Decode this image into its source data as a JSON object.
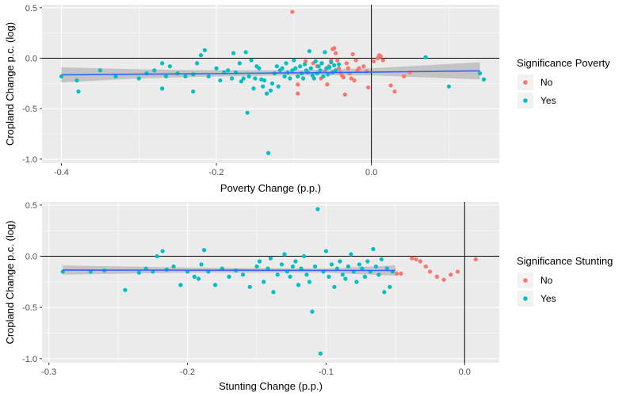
{
  "colors": {
    "no": "#F8766D",
    "yes": "#00BFC4",
    "fit_line": "#3366FF",
    "band": "#BDBDBD",
    "panel_bg": "#EBEBEB",
    "grid": "#FFFFFF",
    "ref_line": "#000000"
  },
  "chart_data": [
    {
      "type": "scatter",
      "title": "",
      "xlabel": "Poverty Change (p.p.)",
      "ylabel": "Cropland Change p.c. (log)",
      "xlim": [
        -0.425,
        0.165
      ],
      "ylim": [
        -1.04,
        0.53
      ],
      "x_ticks": [
        -0.4,
        -0.2,
        0.0
      ],
      "x_tick_labels": [
        "-0.4",
        "-0.2",
        "0.0"
      ],
      "y_ticks": [
        0.5,
        0.0,
        -0.5,
        -1.0
      ],
      "y_tick_labels": [
        "0.5",
        "0.0",
        "-0.5",
        "-1.0"
      ],
      "grid": true,
      "legend": {
        "title": "Significance Poverty",
        "placement": "right",
        "entries": [
          {
            "label": "No",
            "color": "#F8766D"
          },
          {
            "label": "Yes",
            "color": "#00BFC4"
          }
        ]
      },
      "reference_lines": {
        "x": 0.0,
        "y": 0.0
      },
      "fit": {
        "x": [
          -0.4,
          -0.3,
          -0.2,
          -0.1,
          0.0,
          0.14
        ],
        "y": [
          -0.165,
          -0.158,
          -0.152,
          -0.145,
          -0.138,
          -0.125
        ],
        "lower": [
          -0.24,
          -0.2,
          -0.18,
          -0.17,
          -0.17,
          -0.21
        ],
        "upper": [
          -0.09,
          -0.11,
          -0.12,
          -0.12,
          -0.1,
          -0.04
        ]
      },
      "series": [
        {
          "name": "No",
          "color": "#F8766D",
          "points": [
            [
              -0.102,
              0.46
            ],
            [
              -0.095,
              -0.26
            ],
            [
              -0.095,
              -0.35
            ],
            [
              -0.085,
              -0.03
            ],
            [
              -0.075,
              -0.05
            ],
            [
              -0.07,
              -0.08
            ],
            [
              -0.065,
              -0.2
            ],
            [
              -0.06,
              -0.13
            ],
            [
              -0.057,
              -0.26
            ],
            [
              -0.055,
              -0.08
            ],
            [
              -0.052,
              -0.02
            ],
            [
              -0.05,
              0.09
            ],
            [
              -0.048,
              0.1
            ],
            [
              -0.046,
              0.05
            ],
            [
              -0.044,
              -0.02
            ],
            [
              -0.042,
              -0.1
            ],
            [
              -0.04,
              -0.14
            ],
            [
              -0.038,
              -0.17
            ],
            [
              -0.036,
              -0.19
            ],
            [
              -0.034,
              -0.36
            ],
            [
              -0.032,
              -0.05
            ],
            [
              -0.03,
              -0.1
            ],
            [
              -0.028,
              -0.15
            ],
            [
              -0.026,
              -0.2
            ],
            [
              -0.024,
              0.04
            ],
            [
              -0.022,
              -0.22
            ],
            [
              -0.02,
              -0.02
            ],
            [
              -0.018,
              -0.12
            ],
            [
              -0.016,
              -0.1
            ],
            [
              -0.01,
              -0.08
            ],
            [
              -0.006,
              -0.13
            ],
            [
              -0.004,
              -0.29
            ],
            [
              0.003,
              -0.03
            ],
            [
              0.008,
              0.0
            ],
            [
              0.01,
              0.03
            ],
            [
              0.012,
              0.02
            ],
            [
              0.015,
              -0.02
            ],
            [
              0.025,
              -0.27
            ],
            [
              0.03,
              -0.33
            ],
            [
              0.042,
              -0.18
            ],
            [
              0.05,
              -0.14
            ]
          ]
        },
        {
          "name": "Yes",
          "color": "#00BFC4",
          "points": [
            [
              -0.4,
              -0.18
            ],
            [
              -0.38,
              -0.22
            ],
            [
              -0.378,
              -0.33
            ],
            [
              -0.35,
              -0.12
            ],
            [
              -0.33,
              -0.18
            ],
            [
              -0.3,
              -0.2
            ],
            [
              -0.29,
              -0.15
            ],
            [
              -0.28,
              -0.12
            ],
            [
              -0.27,
              -0.3
            ],
            [
              -0.27,
              -0.05
            ],
            [
              -0.265,
              -0.18
            ],
            [
              -0.26,
              -0.08
            ],
            [
              -0.25,
              -0.15
            ],
            [
              -0.24,
              -0.18
            ],
            [
              -0.23,
              -0.16
            ],
            [
              -0.23,
              -0.33
            ],
            [
              -0.225,
              -0.05
            ],
            [
              -0.22,
              0.03
            ],
            [
              -0.215,
              0.08
            ],
            [
              -0.21,
              -0.18
            ],
            [
              -0.2,
              -0.1
            ],
            [
              -0.195,
              -0.22
            ],
            [
              -0.19,
              -0.14
            ],
            [
              -0.185,
              -0.12
            ],
            [
              -0.18,
              -0.2
            ],
            [
              -0.178,
              0.05
            ],
            [
              -0.175,
              -0.14
            ],
            [
              -0.17,
              -0.05
            ],
            [
              -0.168,
              -0.23
            ],
            [
              -0.165,
              -0.2
            ],
            [
              -0.162,
              0.06
            ],
            [
              -0.16,
              -0.54
            ],
            [
              -0.158,
              -0.18
            ],
            [
              -0.155,
              -0.02
            ],
            [
              -0.152,
              -0.3
            ],
            [
              -0.15,
              -0.2
            ],
            [
              -0.148,
              -0.08
            ],
            [
              -0.145,
              -0.1
            ],
            [
              -0.142,
              -0.21
            ],
            [
              -0.14,
              -0.28
            ],
            [
              -0.138,
              -0.22
            ],
            [
              -0.135,
              -0.35
            ],
            [
              -0.133,
              -0.94
            ],
            [
              -0.13,
              -0.32
            ],
            [
              -0.128,
              -0.25
            ],
            [
              -0.125,
              -0.15
            ],
            [
              -0.122,
              -0.08
            ],
            [
              -0.12,
              -0.28
            ],
            [
              -0.118,
              -0.12
            ],
            [
              -0.115,
              -0.1
            ],
            [
              -0.112,
              -0.18
            ],
            [
              -0.11,
              -0.05
            ],
            [
              -0.108,
              -0.14
            ],
            [
              -0.105,
              -0.2
            ],
            [
              -0.102,
              -0.12
            ],
            [
              -0.1,
              -0.02
            ],
            [
              -0.098,
              -0.1
            ],
            [
              -0.095,
              -0.18
            ],
            [
              -0.092,
              -0.08
            ],
            [
              -0.09,
              -0.15
            ],
            [
              -0.088,
              -0.2
            ],
            [
              -0.086,
              -0.06
            ],
            [
              -0.084,
              -0.12
            ],
            [
              -0.082,
              -0.14
            ],
            [
              -0.08,
              0.07
            ],
            [
              -0.078,
              -0.1
            ],
            [
              -0.076,
              -0.17
            ],
            [
              -0.074,
              -0.2
            ],
            [
              -0.072,
              -0.03
            ],
            [
              -0.07,
              -0.15
            ],
            [
              -0.068,
              -0.08
            ],
            [
              -0.066,
              -0.12
            ],
            [
              -0.064,
              -0.05
            ],
            [
              -0.062,
              -0.18
            ],
            [
              -0.06,
              0.06
            ],
            [
              -0.058,
              -0.1
            ],
            [
              -0.056,
              -0.16
            ],
            [
              -0.054,
              -0.09
            ],
            [
              -0.052,
              -0.04
            ],
            [
              -0.05,
              -0.14
            ],
            [
              -0.048,
              -0.07
            ],
            [
              -0.046,
              -0.12
            ],
            [
              -0.042,
              -0.06
            ],
            [
              0.07,
              0.01
            ],
            [
              0.1,
              -0.28
            ],
            [
              0.14,
              -0.15
            ],
            [
              0.145,
              -0.21
            ]
          ]
        }
      ]
    },
    {
      "type": "scatter",
      "title": "",
      "xlabel": "Stunting Change (p.p.)",
      "ylabel": "Cropland Change p.c. (log)",
      "xlim": [
        -0.305,
        0.025
      ],
      "ylim": [
        -1.04,
        0.53
      ],
      "x_ticks": [
        -0.3,
        -0.2,
        -0.1,
        0.0
      ],
      "x_tick_labels": [
        "-0.3",
        "-0.2",
        "-0.1",
        "0.0"
      ],
      "y_ticks": [
        0.5,
        0.0,
        -0.5,
        -1.0
      ],
      "y_tick_labels": [
        "0.5",
        "0.0",
        "-0.5",
        "-1.0"
      ],
      "grid": true,
      "legend": {
        "title": "Significance Stunting",
        "placement": "right",
        "entries": [
          {
            "label": "No",
            "color": "#F8766D"
          },
          {
            "label": "Yes",
            "color": "#00BFC4"
          }
        ]
      },
      "reference_lines": {
        "x": 0.0,
        "y": 0.0
      },
      "fit": {
        "x": [
          -0.29,
          -0.2,
          -0.1,
          -0.05
        ],
        "y": [
          -0.135,
          -0.136,
          -0.138,
          -0.139
        ],
        "lower": [
          -0.18,
          -0.16,
          -0.16,
          -0.19
        ],
        "upper": [
          -0.09,
          -0.11,
          -0.12,
          -0.09
        ]
      },
      "series": [
        {
          "name": "No",
          "color": "#F8766D",
          "points": [
            [
              -0.049,
              -0.17
            ],
            [
              -0.046,
              -0.17
            ],
            [
              -0.038,
              -0.02
            ],
            [
              -0.035,
              -0.03
            ],
            [
              -0.032,
              -0.05
            ],
            [
              -0.028,
              -0.1
            ],
            [
              -0.025,
              -0.15
            ],
            [
              -0.02,
              -0.2
            ],
            [
              -0.015,
              -0.23
            ],
            [
              -0.01,
              -0.18
            ],
            [
              -0.005,
              -0.15
            ],
            [
              0.008,
              -0.03
            ]
          ]
        },
        {
          "name": "Yes",
          "color": "#00BFC4",
          "points": [
            [
              -0.29,
              -0.15
            ],
            [
              -0.27,
              -0.15
            ],
            [
              -0.26,
              -0.14
            ],
            [
              -0.245,
              -0.33
            ],
            [
              -0.235,
              -0.16
            ],
            [
              -0.23,
              -0.12
            ],
            [
              -0.225,
              -0.15
            ],
            [
              -0.222,
              0.0
            ],
            [
              -0.218,
              0.05
            ],
            [
              -0.215,
              -0.13
            ],
            [
              -0.21,
              -0.1
            ],
            [
              -0.205,
              -0.28
            ],
            [
              -0.2,
              -0.15
            ],
            [
              -0.195,
              -0.2
            ],
            [
              -0.192,
              -0.22
            ],
            [
              -0.19,
              -0.08
            ],
            [
              -0.188,
              0.06
            ],
            [
              -0.185,
              -0.15
            ],
            [
              -0.18,
              -0.28
            ],
            [
              -0.175,
              -0.12
            ],
            [
              -0.17,
              -0.2
            ],
            [
              -0.165,
              -0.14
            ],
            [
              -0.16,
              -0.18
            ],
            [
              -0.155,
              -0.3
            ],
            [
              -0.15,
              -0.1
            ],
            [
              -0.148,
              -0.05
            ],
            [
              -0.145,
              -0.25
            ],
            [
              -0.142,
              -0.12
            ],
            [
              -0.14,
              -0.02
            ],
            [
              -0.138,
              -0.35
            ],
            [
              -0.135,
              -0.18
            ],
            [
              -0.132,
              -0.08
            ],
            [
              -0.13,
              0.02
            ],
            [
              -0.128,
              -0.15
            ],
            [
              -0.126,
              -0.2
            ],
            [
              -0.124,
              -0.1
            ],
            [
              -0.122,
              -0.05
            ],
            [
              -0.12,
              -0.28
            ],
            [
              -0.118,
              -0.12
            ],
            [
              -0.116,
              0.0
            ],
            [
              -0.114,
              -0.18
            ],
            [
              -0.112,
              -0.25
            ],
            [
              -0.11,
              -0.54
            ],
            [
              -0.108,
              -0.1
            ],
            [
              -0.106,
              0.46
            ],
            [
              -0.104,
              -0.95
            ],
            [
              -0.102,
              -0.15
            ],
            [
              -0.1,
              0.05
            ],
            [
              -0.098,
              -0.2
            ],
            [
              -0.096,
              -0.08
            ],
            [
              -0.094,
              -0.3
            ],
            [
              -0.092,
              -0.12
            ],
            [
              -0.09,
              -0.05
            ],
            [
              -0.088,
              -0.18
            ],
            [
              -0.086,
              -0.22
            ],
            [
              -0.084,
              -0.1
            ],
            [
              -0.082,
              0.02
            ],
            [
              -0.08,
              -0.15
            ],
            [
              -0.078,
              -0.25
            ],
            [
              -0.076,
              -0.08
            ],
            [
              -0.074,
              -0.12
            ],
            [
              -0.072,
              -0.2
            ],
            [
              -0.07,
              -0.05
            ],
            [
              -0.068,
              -0.15
            ],
            [
              -0.066,
              0.07
            ],
            [
              -0.064,
              -0.1
            ],
            [
              -0.062,
              -0.18
            ],
            [
              -0.06,
              -0.03
            ],
            [
              -0.058,
              -0.35
            ],
            [
              -0.056,
              -0.12
            ],
            [
              -0.054,
              -0.3
            ],
            [
              -0.052,
              -0.15
            ]
          ]
        }
      ]
    }
  ]
}
